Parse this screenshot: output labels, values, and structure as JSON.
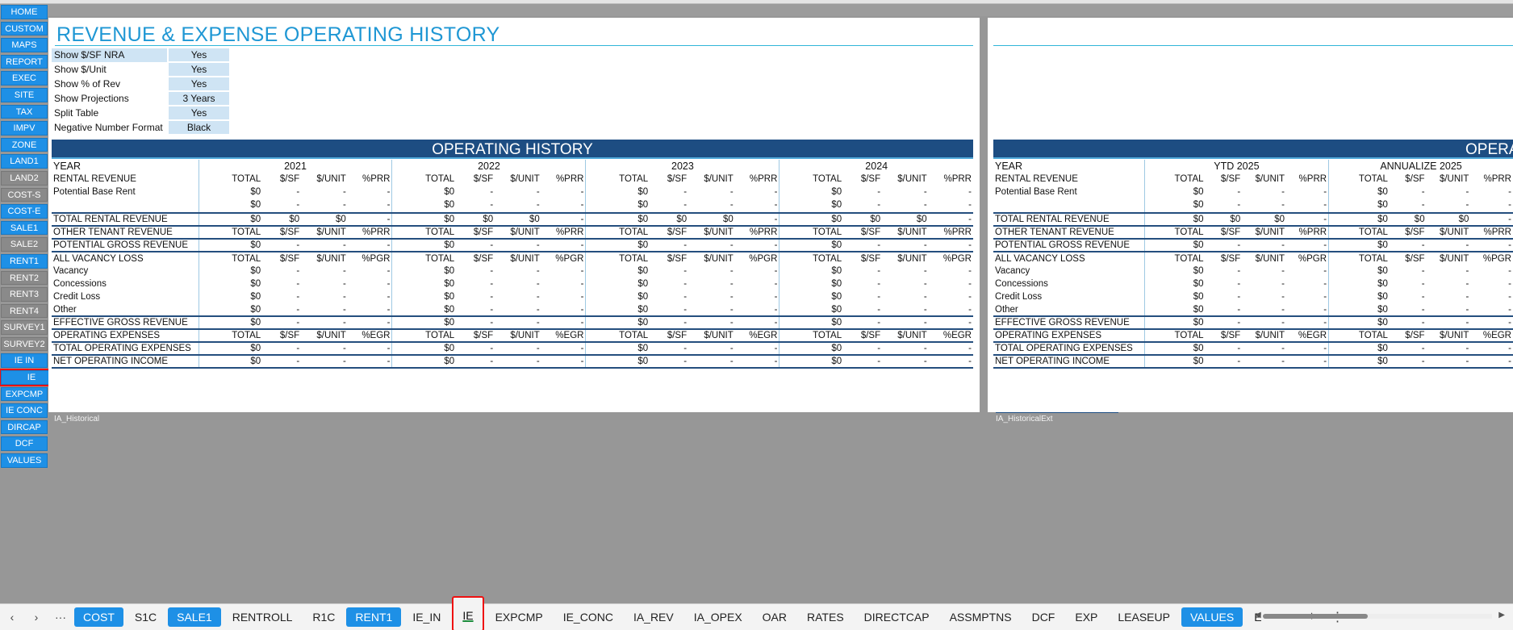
{
  "nav": [
    {
      "label": "HOME",
      "style": "blue"
    },
    {
      "label": "CUSTOM",
      "style": "blue"
    },
    {
      "label": "MAPS",
      "style": "blue"
    },
    {
      "label": "REPORT",
      "style": "blue"
    },
    {
      "label": "EXEC",
      "style": "blue"
    },
    {
      "label": "SITE",
      "style": "blue"
    },
    {
      "label": "TAX",
      "style": "blue"
    },
    {
      "label": "IMPV",
      "style": "blue"
    },
    {
      "label": "ZONE",
      "style": "blue"
    },
    {
      "label": "LAND1",
      "style": "blue"
    },
    {
      "label": "LAND2",
      "style": "gray"
    },
    {
      "label": "COST-S",
      "style": "gray"
    },
    {
      "label": "COST-E",
      "style": "blue"
    },
    {
      "label": "SALE1",
      "style": "blue"
    },
    {
      "label": "SALE2",
      "style": "gray"
    },
    {
      "label": "RENT1",
      "style": "blue"
    },
    {
      "label": "RENT2",
      "style": "gray"
    },
    {
      "label": "RENT3",
      "style": "gray"
    },
    {
      "label": "RENT4",
      "style": "gray"
    },
    {
      "label": "SURVEY1",
      "style": "gray"
    },
    {
      "label": "SURVEY2",
      "style": "gray"
    },
    {
      "label": "IE IN",
      "style": "blue"
    },
    {
      "label": "IE",
      "style": "active"
    },
    {
      "label": "EXPCMP",
      "style": "blue"
    },
    {
      "label": "IE CONC",
      "style": "blue"
    },
    {
      "label": "DIRCAP",
      "style": "blue"
    },
    {
      "label": "DCF",
      "style": "blue"
    },
    {
      "label": "VALUES",
      "style": "blue"
    }
  ],
  "title": "REVENUE & EXPENSE OPERATING HISTORY",
  "options": [
    {
      "label": "Show $/SF NRA",
      "value": "Yes",
      "hl": true
    },
    {
      "label": "Show $/Unit",
      "value": "Yes",
      "hl": false
    },
    {
      "label": "Show % of Rev",
      "value": "Yes",
      "hl": false
    },
    {
      "label": "Show Projections",
      "value": "3 Years",
      "hl": false
    },
    {
      "label": "Split Table",
      "value": "Yes",
      "hl": false
    },
    {
      "label": "Negative Number Format",
      "value": "Black",
      "hl": false
    }
  ],
  "section_title": "OPERATING HISTORY",
  "section_title_right": "OPERATING",
  "range_left": "IA_Historical",
  "range_right": "IA_HistoricalExt",
  "year_label": "YEAR",
  "years_left": [
    "2021",
    "2022",
    "2023",
    "2024"
  ],
  "years_right": [
    "YTD 2025",
    "ANNUALIZE 2025"
  ],
  "col_heads": {
    "prr": [
      "TOTAL",
      "$/SF",
      "$/UNIT",
      "%PRR"
    ],
    "pgr": [
      "TOTAL",
      "$/SF",
      "$/UNIT",
      "%PGR"
    ],
    "egr": [
      "TOTAL",
      "$/SF",
      "$/UNIT",
      "%EGR"
    ]
  },
  "rows": [
    {
      "label": "RENTAL REVENUE",
      "type": "header",
      "heads": "prr",
      "bold": true
    },
    {
      "label": "Potential Base Rent",
      "type": "data",
      "vals": [
        "$0",
        "-",
        "-",
        "-"
      ]
    },
    {
      "label": "",
      "type": "data",
      "vals": [
        "$0",
        "-",
        "-",
        "-"
      ]
    },
    {
      "label": "TOTAL RENTAL REVENUE",
      "type": "data",
      "vals": [
        "$0",
        "$0",
        "$0",
        "-"
      ],
      "sep": "heavy",
      "gapBefore": true
    },
    {
      "label": "OTHER TENANT REVENUE",
      "type": "header",
      "heads": "prr",
      "sep": "heavy"
    },
    {
      "label": "POTENTIAL GROSS REVENUE",
      "type": "data",
      "vals": [
        "$0",
        "-",
        "-",
        "-"
      ],
      "sep": "heavy"
    },
    {
      "label": "ALL VACANCY LOSS",
      "type": "header",
      "heads": "pgr",
      "sep": "heavy"
    },
    {
      "label": "Vacancy",
      "type": "data",
      "vals": [
        "$0",
        "-",
        "-",
        "-"
      ]
    },
    {
      "label": "Concessions",
      "type": "data",
      "vals": [
        "$0",
        "-",
        "-",
        "-"
      ]
    },
    {
      "label": "Credit Loss",
      "type": "data",
      "vals": [
        "$0",
        "-",
        "-",
        "-"
      ]
    },
    {
      "label": "Other",
      "type": "data",
      "vals": [
        "$0",
        "-",
        "-",
        "-"
      ]
    },
    {
      "label": "EFFECTIVE GROSS REVENUE",
      "type": "data",
      "vals": [
        "$0",
        "-",
        "-",
        "-"
      ],
      "sep": "heavy"
    },
    {
      "label": "OPERATING EXPENSES",
      "type": "header",
      "heads": "egr",
      "sep": "heavy"
    },
    {
      "label": "TOTAL OPERATING EXPENSES",
      "type": "data",
      "vals": [
        "$0",
        "-",
        "-",
        "-"
      ],
      "sep": "heavy"
    },
    {
      "label": "NET OPERATING INCOME",
      "type": "data",
      "vals": [
        "$0",
        "-",
        "-",
        "-"
      ],
      "sep": "heavy",
      "bottom": true
    }
  ],
  "sheet_tabs": [
    {
      "label": "COST",
      "style": "blue"
    },
    {
      "label": "S1C",
      "style": "plain"
    },
    {
      "label": "SALE1",
      "style": "blue"
    },
    {
      "label": "RENTROLL",
      "style": "plain"
    },
    {
      "label": "R1C",
      "style": "plain"
    },
    {
      "label": "RENT1",
      "style": "blue"
    },
    {
      "label": "IE_IN",
      "style": "plain"
    },
    {
      "label": "IE",
      "style": "active"
    },
    {
      "label": "EXPCMP",
      "style": "plain"
    },
    {
      "label": "IE_CONC",
      "style": "plain"
    },
    {
      "label": "IA_REV",
      "style": "plain"
    },
    {
      "label": "IA_OPEX",
      "style": "plain"
    },
    {
      "label": "OAR",
      "style": "plain"
    },
    {
      "label": "RATES",
      "style": "plain"
    },
    {
      "label": "DIRECTCAP",
      "style": "plain"
    },
    {
      "label": "ASSMPTNS",
      "style": "plain"
    },
    {
      "label": "DCF",
      "style": "plain"
    },
    {
      "label": "EXP",
      "style": "plain"
    },
    {
      "label": "LEASEUP",
      "style": "plain"
    },
    {
      "label": "VALUES",
      "style": "blue"
    },
    {
      "label": "E",
      "style": "plain"
    }
  ],
  "sheet_controls": {
    "prev": "‹",
    "next": "›",
    "more": "···",
    "more_right": "···",
    "add": "+",
    "menu": "⋮"
  },
  "colors": {
    "nav_blue": "#1e90e6",
    "nav_gray": "#8a8a8a",
    "title_blue": "#1f97d4",
    "bar_navy": "#1d4d82",
    "option_bg": "#cfe4f4"
  }
}
